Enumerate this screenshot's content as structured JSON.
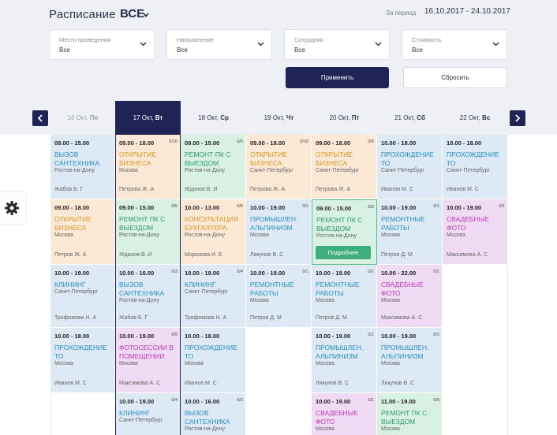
{
  "header": {
    "title": "Расписание",
    "title_value": "ВСЕ",
    "period_label": "За период",
    "period_value": "16.10.2017 - 24.10.2017"
  },
  "filters": [
    {
      "label": "Место проведения",
      "value": "Все"
    },
    {
      "label": "Направление",
      "value": "Все"
    },
    {
      "label": "Сотрудник",
      "value": "Все"
    },
    {
      "label": "Стоимость",
      "value": "Все"
    }
  ],
  "buttons": {
    "apply": "Применить",
    "reset": "Сбросить"
  },
  "days": [
    {
      "num": "16",
      "month": "Окт,",
      "dw": "Пн"
    },
    {
      "num": "17",
      "month": "Окт,",
      "dw": "Вт"
    },
    {
      "num": "18",
      "month": "Окт,",
      "dw": "Ср"
    },
    {
      "num": "19",
      "month": "Окт,",
      "dw": "Чт"
    },
    {
      "num": "20",
      "month": "Окт,",
      "dw": "Пт"
    },
    {
      "num": "21",
      "month": "Окт,",
      "dw": "Сб"
    },
    {
      "num": "22",
      "month": "Окт,",
      "dw": "Вс"
    }
  ],
  "more_label": "Подробнее",
  "cards": [
    {
      "time": "09.00 - 15.00",
      "count": "",
      "name1": "Вызов",
      "name2": "сантехника",
      "city": "Ростов-на-Дону",
      "person": "Жабов Б. Г"
    },
    {
      "time": "09.00 - 18.00",
      "count": "0/10",
      "name1": "Открытие",
      "name2": "бизнеса",
      "city": "Москва",
      "person": "Петрова Ж. А"
    },
    {
      "time": "09.00 - 15.00",
      "count": "0/5",
      "name1": "Ремонт ПК с",
      "name2": "выездом",
      "city": "Ростов-на-Дону",
      "person": "Жданов В. И"
    },
    {
      "time": "09.00 - 18.00",
      "count": "0/10",
      "name1": "Открытие",
      "name2": "бизнеса",
      "city": "Санкт-Петербург",
      "person": "Петрова Ж. А"
    },
    {
      "time": "09.00 - 18.00",
      "count": "0/5",
      "name1": "Открытие",
      "name2": "бизнеса",
      "city": "Санкт-Петербург",
      "person": "Петрова Ж. А"
    },
    {
      "time": "10.00 - 18.00",
      "count": "",
      "name1": "Прохождение",
      "name2": "ТО",
      "city": "Санкт-Петербург",
      "person": "Иванов М. С"
    },
    {
      "time": "10.00 - 18.00",
      "count": "",
      "name1": "Прохождение",
      "name2": "ТО",
      "city": "Санкт-Петербург",
      "person": "Иванов М. С"
    },
    {
      "time": "09.00 - 18.00",
      "count": "",
      "name1": "Открытие",
      "name2": "бизнеса",
      "city": "Москва",
      "person": "Петров Ж. А"
    },
    {
      "time": "09.00 - 15.00",
      "count": "0/5",
      "name1": "Ремонт ПК с",
      "name2": "выездом",
      "city": "Ростов-на-Дону",
      "person": "Жданов В. И"
    },
    {
      "time": "10.00 - 13.00",
      "count": "0/5",
      "name1": "Консультация",
      "name2": "бухгалтера",
      "city": "Ростов-на-Дону",
      "person": "Морозова И. Б"
    },
    {
      "time": "10.00 - 19.00",
      "count": "0/1",
      "name1": "Промышлен.",
      "name2": "альпинизм",
      "city": "Москва",
      "person": "Ликунов В. С"
    },
    {
      "time": "09.00 - 15.00",
      "count": "0/5",
      "name1": "Ремонт ПК с",
      "name2": "выездом",
      "city": "Ростов-на-Дону",
      "person": ""
    },
    {
      "time": "10.00 - 19.00",
      "count": "0/1",
      "name1": "Ремонтные",
      "name2": "работы",
      "city": "Москва",
      "person": "Петров Д. М"
    },
    {
      "time": "10.00 - 19.00",
      "count": "0/1",
      "name1": "Свадебные",
      "name2": "фото",
      "city": "Москва",
      "person": "Максимова А. С"
    },
    {
      "time": "10.00 - 19.00",
      "count": "",
      "name1": "Клининг",
      "name2": "",
      "city": "Санкт-Петербург",
      "person": "Трофимова Н. А"
    },
    {
      "time": "10.00 - 16.00",
      "count": "0/3",
      "name1": "Вызов",
      "name2": "сантехника",
      "city": "Ростов-на-Дону",
      "person": "Жабов Б. Г"
    },
    {
      "time": "10.00 - 19.00",
      "count": "0/4",
      "name1": "Клининг",
      "name2": "",
      "city": "Санкт-Петербург",
      "person": "Трофимова Н. А"
    },
    {
      "time": "10.00 - 19.00",
      "count": "0/1",
      "name1": "Ремонтные",
      "name2": "работы",
      "city": "Москва",
      "person": "Петров Д. М"
    },
    {
      "time": "10.00 - 19.00",
      "count": "0/1",
      "name1": "Ремонтные",
      "name2": "работы",
      "city": "Москва",
      "person": "Петров Д. М"
    },
    {
      "time": "10.00 - 22.00",
      "count": "0/1",
      "name1": "Свадебные",
      "name2": "фото",
      "city": "Москва",
      "person": "Максимова А. С"
    },
    {
      "time": "10.00 - 18.00",
      "count": "",
      "name1": "Прохождение",
      "name2": "ТО",
      "city": "Москва",
      "person": "Иванов М. С"
    },
    {
      "time": "10.00 - 19.00",
      "count": "0/5",
      "name1": "Фотосессии в",
      "name2": "помещении",
      "city": "Москва",
      "person": "Максимова А. С"
    },
    {
      "time": "10.00 - 18.00",
      "count": "",
      "name1": "Прохождение",
      "name2": "ТО",
      "city": "Москва",
      "person": "Иванов М. С"
    },
    {
      "time": "10.00 - 19.00",
      "count": "0/1",
      "name1": "Промышлен.",
      "name2": "альпинизм",
      "city": "Москва",
      "person": "Ликунов В. С"
    },
    {
      "time": "10.00 - 19.00",
      "count": "0/1",
      "name1": "Промышлен.",
      "name2": "альпинизм",
      "city": "Москва",
      "person": "Ликунов В. С"
    },
    {
      "time": "10.00 - 19.00",
      "count": "0/4",
      "name1": "Клининг",
      "name2": "",
      "city": "Санкт-Петербург",
      "person": ""
    },
    {
      "time": "10.00 - 16.00",
      "count": "0/3",
      "name1": "Вызов",
      "name2": "сантехника",
      "city": "Ростов-на-Дону",
      "person": ""
    },
    {
      "time": "10.00 - 19.00",
      "count": "0/1",
      "name1": "Свадебные",
      "name2": "фото",
      "city": "Москва",
      "person": ""
    },
    {
      "time": "11.00 - 19.00",
      "count": "0/5",
      "name1": "Ремонт ПК с",
      "name2": "выездом",
      "city": "Москва",
      "person": ""
    }
  ]
}
